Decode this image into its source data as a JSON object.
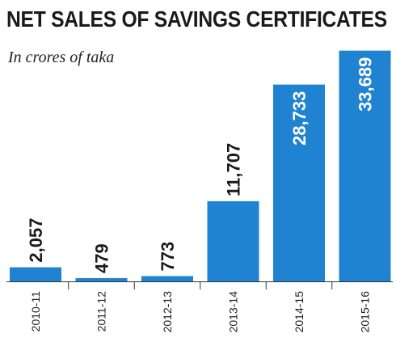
{
  "header": {
    "title": "NET SALES OF SAVINGS CERTIFICATES",
    "subtitle": "In crores of taka"
  },
  "colors": {
    "bar": "#1f83d1",
    "label_outside": "#1a1a1a",
    "label_inside": "#ffffff",
    "axis": "#333333"
  },
  "chart_data": {
    "type": "bar",
    "title": "NET SALES OF SAVINGS CERTIFICATES",
    "subtitle": "In crores of taka",
    "categories": [
      "2010-11",
      "2011-12",
      "2012-13",
      "2013-14",
      "2014-15",
      "2015-16"
    ],
    "values": [
      2057,
      479,
      773,
      11707,
      28733,
      33689
    ],
    "value_labels": [
      "2,057",
      "479",
      "773",
      "11,707",
      "28,733",
      "33,689"
    ],
    "ylim": [
      0,
      34000
    ],
    "grid": false,
    "legend": "none"
  }
}
